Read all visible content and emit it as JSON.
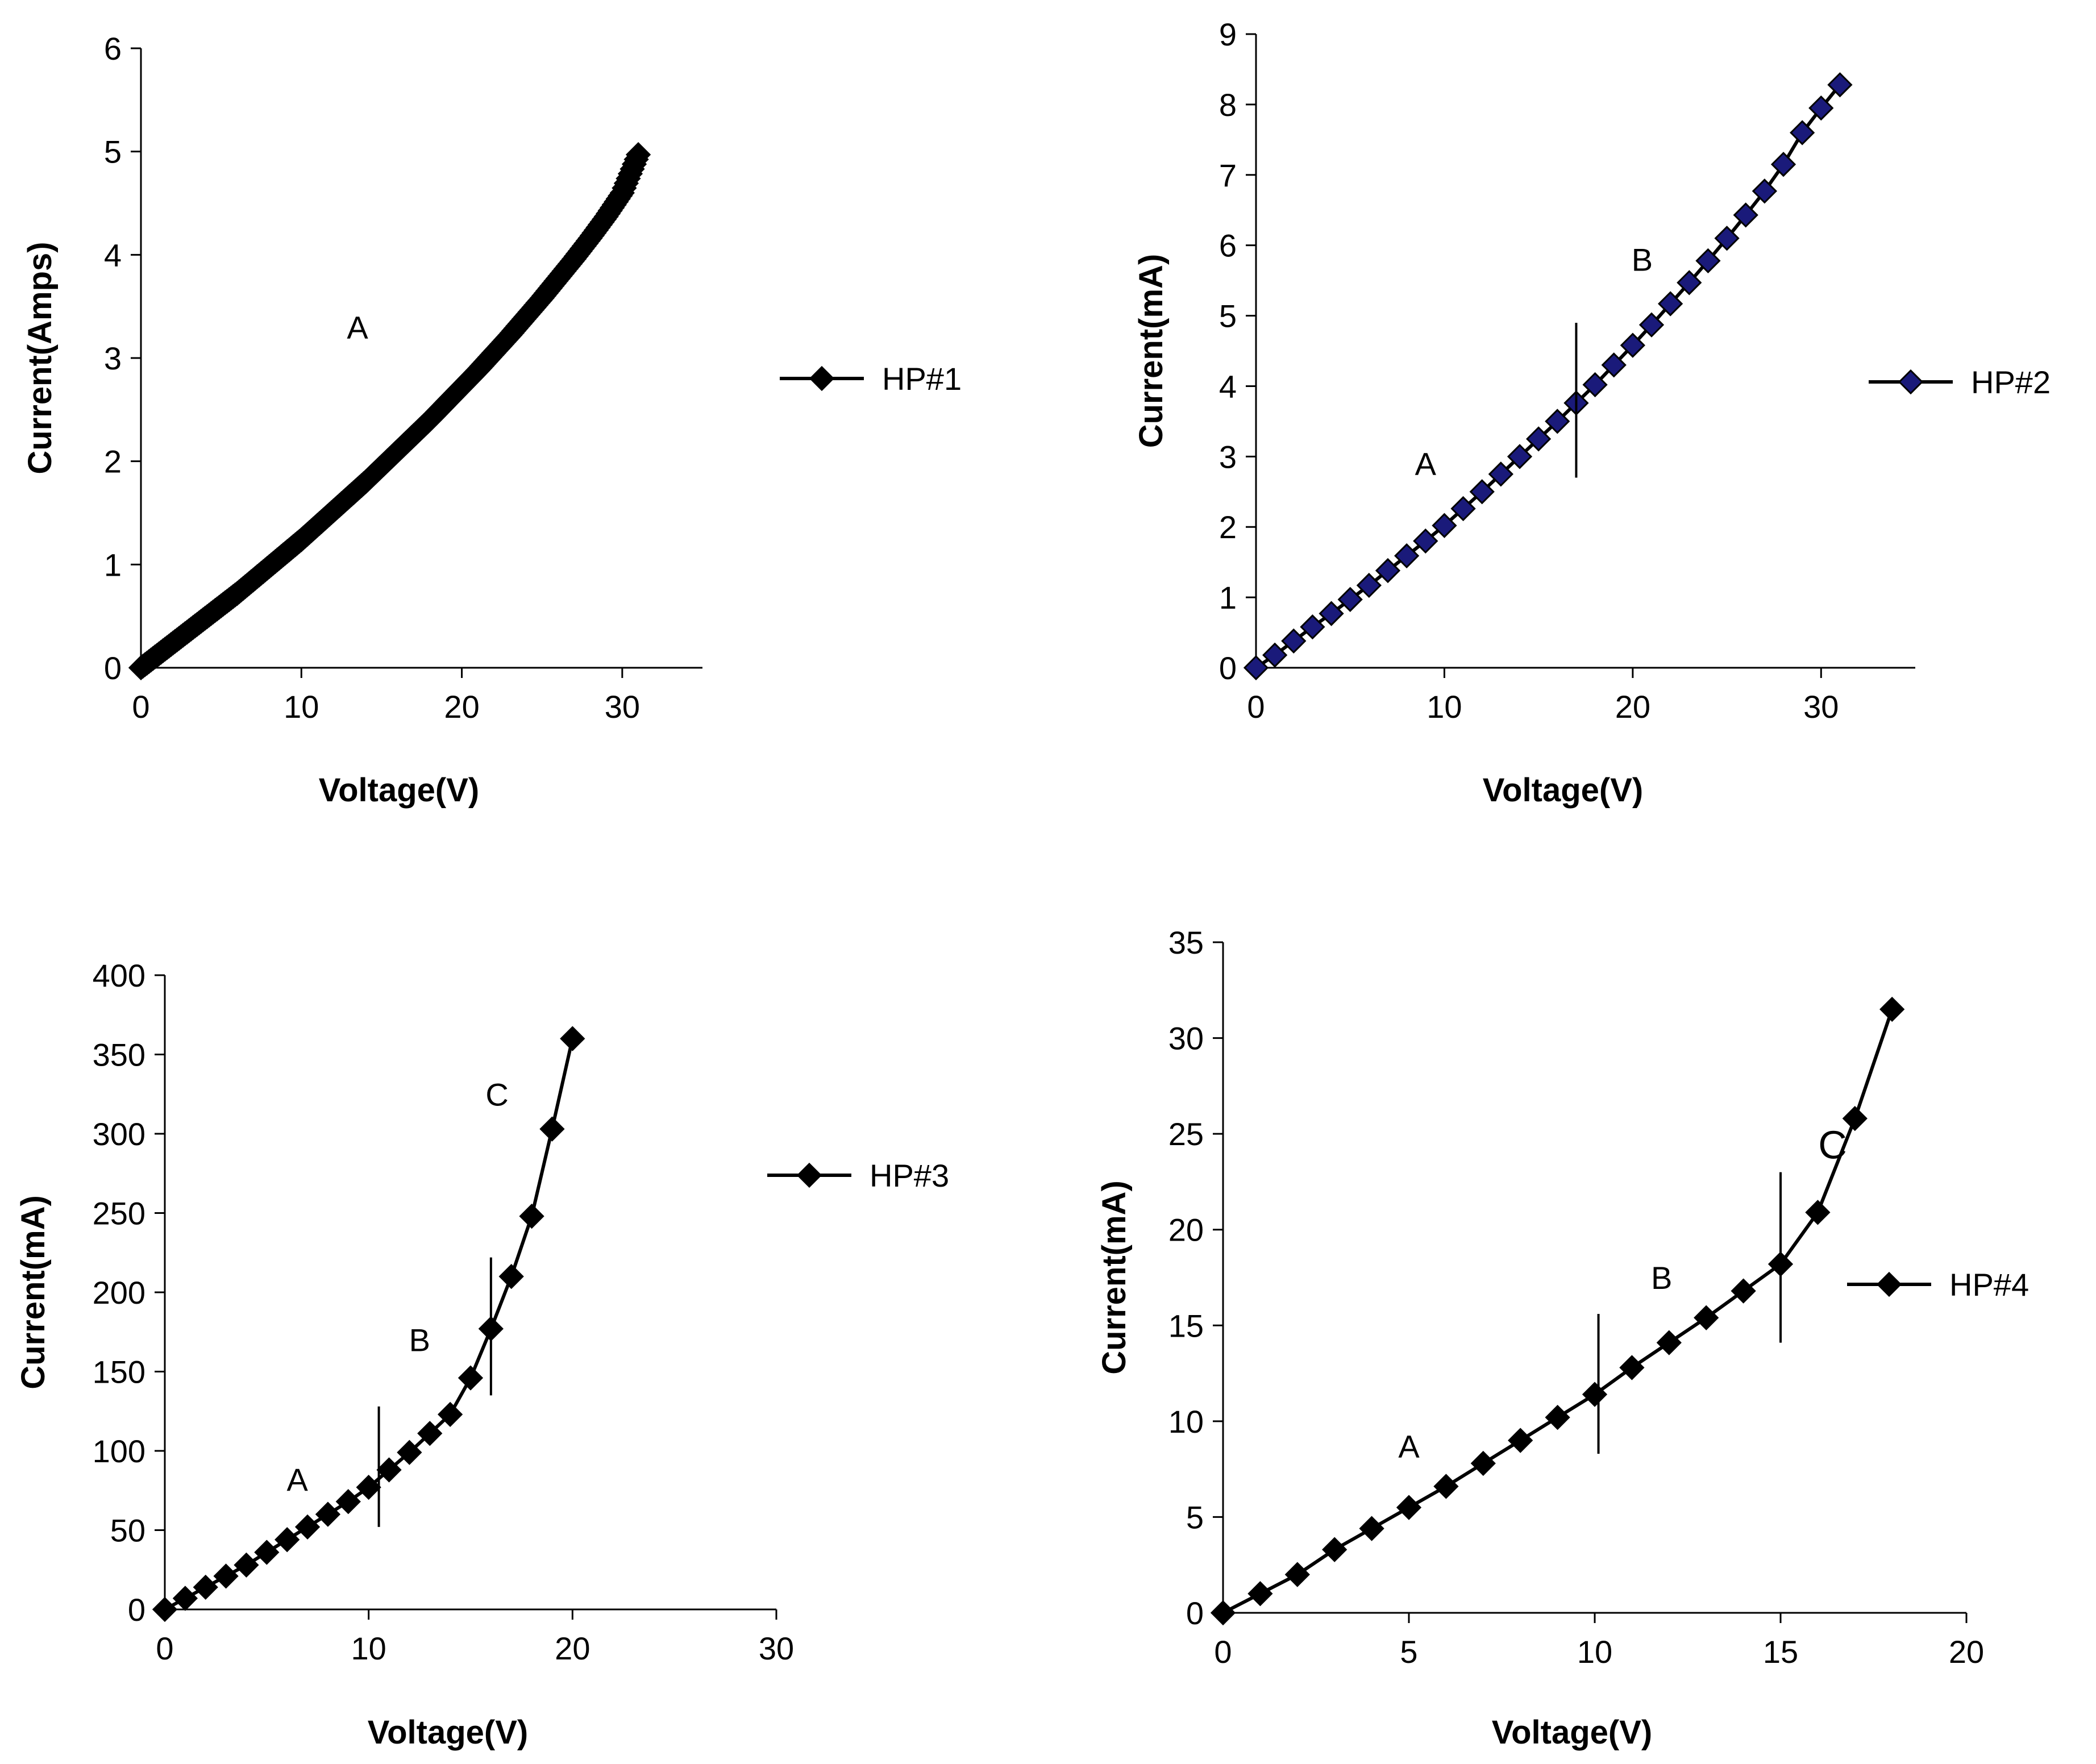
{
  "chart_data": [
    {
      "type": "line",
      "id": "hp1",
      "xlabel": "Voltage(V)",
      "ylabel": "Current(Amps)",
      "xlim": [
        0,
        35
      ],
      "ylim": [
        0,
        6
      ],
      "xticks": [
        0,
        10,
        20,
        30
      ],
      "yticks": [
        0,
        1,
        2,
        3,
        4,
        5,
        6
      ],
      "marker_color": "#000000",
      "line_color": "#000000",
      "dense": true,
      "series": [
        {
          "name": "HP#1",
          "x": [
            0,
            1,
            2,
            3,
            4,
            5,
            6,
            7,
            8,
            9,
            10,
            11,
            12,
            13,
            14,
            15,
            16,
            17,
            18,
            19,
            20,
            21,
            22,
            23,
            24,
            25,
            26,
            27,
            28,
            29,
            30,
            31
          ],
          "y": [
            0,
            0.12,
            0.24,
            0.36,
            0.48,
            0.6,
            0.72,
            0.85,
            0.98,
            1.11,
            1.24,
            1.38,
            1.52,
            1.66,
            1.8,
            1.95,
            2.1,
            2.25,
            2.4,
            2.56,
            2.72,
            2.88,
            3.05,
            3.22,
            3.4,
            3.58,
            3.77,
            3.96,
            4.16,
            4.37,
            4.6,
            4.97
          ]
        }
      ],
      "regions": [
        {
          "label": "A",
          "x": 13.5,
          "y": 3.3
        }
      ],
      "dividers": []
    },
    {
      "type": "line",
      "id": "hp2",
      "xlabel": "Voltage(V)",
      "ylabel": "Current(mA)",
      "xlim": [
        0,
        35
      ],
      "ylim": [
        0,
        9
      ],
      "xticks": [
        0,
        10,
        20,
        30
      ],
      "yticks": [
        0,
        1,
        2,
        3,
        4,
        5,
        6,
        7,
        8,
        9
      ],
      "marker_color": "#1a1a7a",
      "line_color": "#000000",
      "dense": false,
      "series": [
        {
          "name": "HP#2",
          "x": [
            0,
            1,
            2,
            3,
            4,
            5,
            6,
            7,
            8,
            9,
            10,
            11,
            12,
            13,
            14,
            15,
            16,
            17,
            18,
            19,
            20,
            21,
            22,
            23,
            24,
            25,
            26,
            27,
            28,
            29,
            30,
            31
          ],
          "y": [
            0,
            0.18,
            0.38,
            0.58,
            0.77,
            0.97,
            1.17,
            1.38,
            1.59,
            1.8,
            2.02,
            2.26,
            2.5,
            2.75,
            3.0,
            3.25,
            3.5,
            3.76,
            4.02,
            4.3,
            4.58,
            4.87,
            5.17,
            5.47,
            5.78,
            6.1,
            6.43,
            6.77,
            7.15,
            7.6,
            7.95,
            8.28
          ]
        }
      ],
      "regions": [
        {
          "label": "A",
          "x": 9,
          "y": 2.9
        },
        {
          "label": "B",
          "x": 20.5,
          "y": 5.8
        }
      ],
      "dividers": [
        {
          "x": 17,
          "y1": 2.7,
          "y2": 4.9
        }
      ]
    },
    {
      "type": "line",
      "id": "hp3",
      "xlabel": "Voltage(V)",
      "ylabel": "Current(mA)",
      "xlim": [
        0,
        30
      ],
      "ylim": [
        0,
        400
      ],
      "xticks": [
        0,
        10,
        20,
        30
      ],
      "yticks": [
        0,
        50,
        100,
        150,
        200,
        250,
        300,
        350,
        400
      ],
      "marker_color": "#000000",
      "line_color": "#000000",
      "dense": false,
      "series": [
        {
          "name": "HP#3",
          "x": [
            0,
            1,
            2,
            3,
            4,
            5,
            6,
            7,
            8,
            9,
            10,
            11,
            12,
            13,
            14,
            15,
            16,
            17,
            18,
            19,
            20
          ],
          "y": [
            0,
            7,
            14,
            21,
            28,
            36,
            44,
            52,
            60,
            68,
            77,
            88,
            99,
            111,
            123,
            146,
            177,
            210,
            248,
            303,
            360
          ]
        }
      ],
      "regions": [
        {
          "label": "A",
          "x": 6.5,
          "y": 82
        },
        {
          "label": "B",
          "x": 12.5,
          "y": 170
        },
        {
          "label": "C",
          "x": 16.3,
          "y": 325
        }
      ],
      "dividers": [
        {
          "x": 10.5,
          "y1": 52,
          "y2": 128
        },
        {
          "x": 16,
          "y1": 135,
          "y2": 222
        }
      ]
    },
    {
      "type": "line",
      "id": "hp4",
      "xlabel": "Voltage(V)",
      "ylabel": "Current(mA)",
      "xlim": [
        0,
        20
      ],
      "ylim": [
        0,
        35
      ],
      "xticks": [
        0,
        5,
        10,
        15,
        20
      ],
      "yticks": [
        0,
        5,
        10,
        15,
        20,
        25,
        30,
        35
      ],
      "marker_color": "#000000",
      "line_color": "#000000",
      "dense": false,
      "series": [
        {
          "name": "HP#4",
          "x": [
            0,
            1,
            2,
            3,
            4,
            5,
            6,
            7,
            8,
            9,
            10,
            11,
            12,
            13,
            14,
            15,
            16,
            17,
            18
          ],
          "y": [
            0,
            1.0,
            2.0,
            3.3,
            4.4,
            5.5,
            6.6,
            7.8,
            9.0,
            10.2,
            11.4,
            12.8,
            14.1,
            15.4,
            16.8,
            18.2,
            20.9,
            25.8,
            31.5
          ]
        }
      ],
      "regions": [
        {
          "label": "A",
          "x": 5,
          "y": 8.7
        },
        {
          "label": "B",
          "x": 11.8,
          "y": 17.5
        },
        {
          "label": "C",
          "x": 16.4,
          "y": 24.3
        }
      ],
      "dividers": [
        {
          "x": 10.1,
          "y1": 8.3,
          "y2": 15.6
        },
        {
          "x": 15,
          "y1": 14.1,
          "y2": 23
        }
      ]
    }
  ]
}
